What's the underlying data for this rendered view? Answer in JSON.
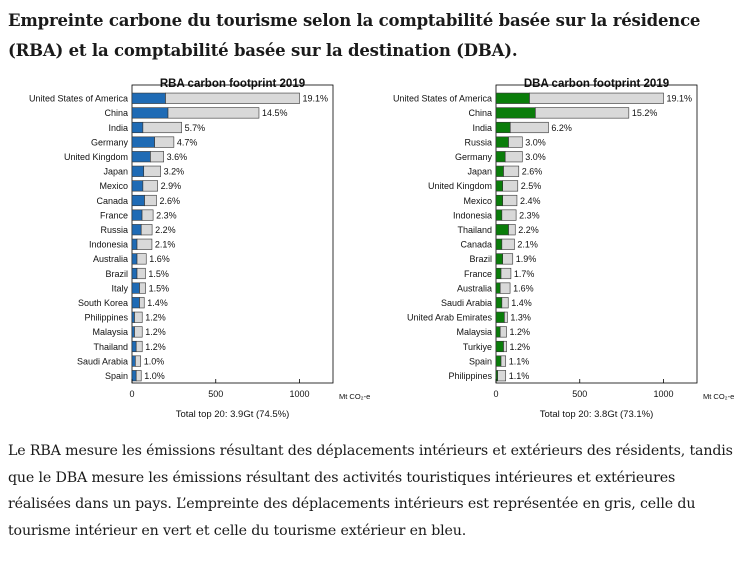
{
  "heading": {
    "line1": "Empreinte carbone du tourisme selon la comptabilité basée sur la résidence",
    "line2": "(RBA) et la comptabilité basée sur la destination (DBA)."
  },
  "caption": {
    "line1": "Le RBA mesure les émissions résultant des déplacements intérieurs et extérieurs des résidents, tandis",
    "line2": "que le DBA mesure les émissions résultant des activités touristiques intérieures et extérieures",
    "line3": "réalisées dans un pays. L’empreinte des déplacements intérieurs est représentée en gris, celle du",
    "line4": "tourisme intérieur en vert et celle du tourisme extérieur en bleu."
  },
  "colors": {
    "domestic_travel": "#d9d9d9",
    "domestic_tourism": "#0a7d0a",
    "outbound_tourism": "#1f6bb5",
    "bar_outline": "#333333"
  },
  "chart_data": [
    {
      "type": "bar",
      "orientation": "horizontal",
      "stacked": true,
      "title": "RBA carbon footprint 2019",
      "unit_label": "Mt CO₂-e",
      "footer": "Total top 20: 3.9Gt (74.5%)",
      "xlim": [
        0,
        1200
      ],
      "xticks": [
        0,
        500,
        1000
      ],
      "grid": false,
      "categories": [
        "United States of America",
        "China",
        "India",
        "Germany",
        "United Kingdom",
        "Japan",
        "Mexico",
        "Canada",
        "France",
        "Russia",
        "Indonesia",
        "Australia",
        "Brazil",
        "Italy",
        "South Korea",
        "Philippines",
        "Malaysia",
        "Thailand",
        "Saudi Arabia",
        "Spain"
      ],
      "labels": [
        "19.1%",
        "14.5%",
        "5.7%",
        "4.7%",
        "3.6%",
        "3.2%",
        "2.9%",
        "2.6%",
        "2.3%",
        "2.2%",
        "2.1%",
        "1.6%",
        "1.5%",
        "1.5%",
        "1.4%",
        "1.2%",
        "1.2%",
        "1.2%",
        "1.0%",
        "1.0%"
      ],
      "series": [
        {
          "color": "#1f6bb5",
          "values": [
            200,
            215,
            65,
            135,
            110,
            70,
            65,
            75,
            60,
            55,
            30,
            30,
            30,
            45,
            45,
            15,
            15,
            25,
            20,
            25
          ]
        },
        {
          "color": "#d9d9d9",
          "values": [
            800,
            543,
            231,
            115,
            79,
            101,
            88,
            71,
            66,
            65,
            89,
            55,
            50,
            36,
            28,
            46,
            46,
            36,
            32,
            30
          ]
        }
      ]
    },
    {
      "type": "bar",
      "orientation": "horizontal",
      "stacked": true,
      "title": "DBA carbon footprint 2019",
      "unit_label": "Mt CO₂-e",
      "footer": "Total top 20: 3.8Gt (73.1%)",
      "xlim": [
        0,
        1200
      ],
      "xticks": [
        0,
        500,
        1000
      ],
      "grid": false,
      "categories": [
        "United States of America",
        "China",
        "India",
        "Russia",
        "Germany",
        "Japan",
        "United Kingdom",
        "Mexico",
        "Indonesia",
        "Thailand",
        "Canada",
        "Brazil",
        "France",
        "Australia",
        "Saudi Arabia",
        "United Arab Emirates",
        "Malaysia",
        "Turkiye",
        "Spain",
        "Philippines"
      ],
      "labels": [
        "19.1%",
        "15.2%",
        "6.2%",
        "3.0%",
        "3.0%",
        "2.6%",
        "2.5%",
        "2.4%",
        "2.3%",
        "2.2%",
        "2.1%",
        "1.9%",
        "1.7%",
        "1.6%",
        "1.4%",
        "1.3%",
        "1.2%",
        "1.2%",
        "1.1%",
        "1.1%"
      ],
      "series": [
        {
          "color": "#0a7d0a",
          "values": [
            200,
            235,
            85,
            75,
            55,
            45,
            40,
            40,
            35,
            75,
            35,
            40,
            30,
            25,
            35,
            50,
            25,
            45,
            30,
            10
          ]
        },
        {
          "color": "#d9d9d9",
          "values": [
            800,
            558,
            228,
            82,
            102,
            91,
            90,
            85,
            85,
            40,
            75,
            60,
            59,
            59,
            38,
            18,
            38,
            18,
            28,
            48
          ]
        }
      ]
    }
  ]
}
